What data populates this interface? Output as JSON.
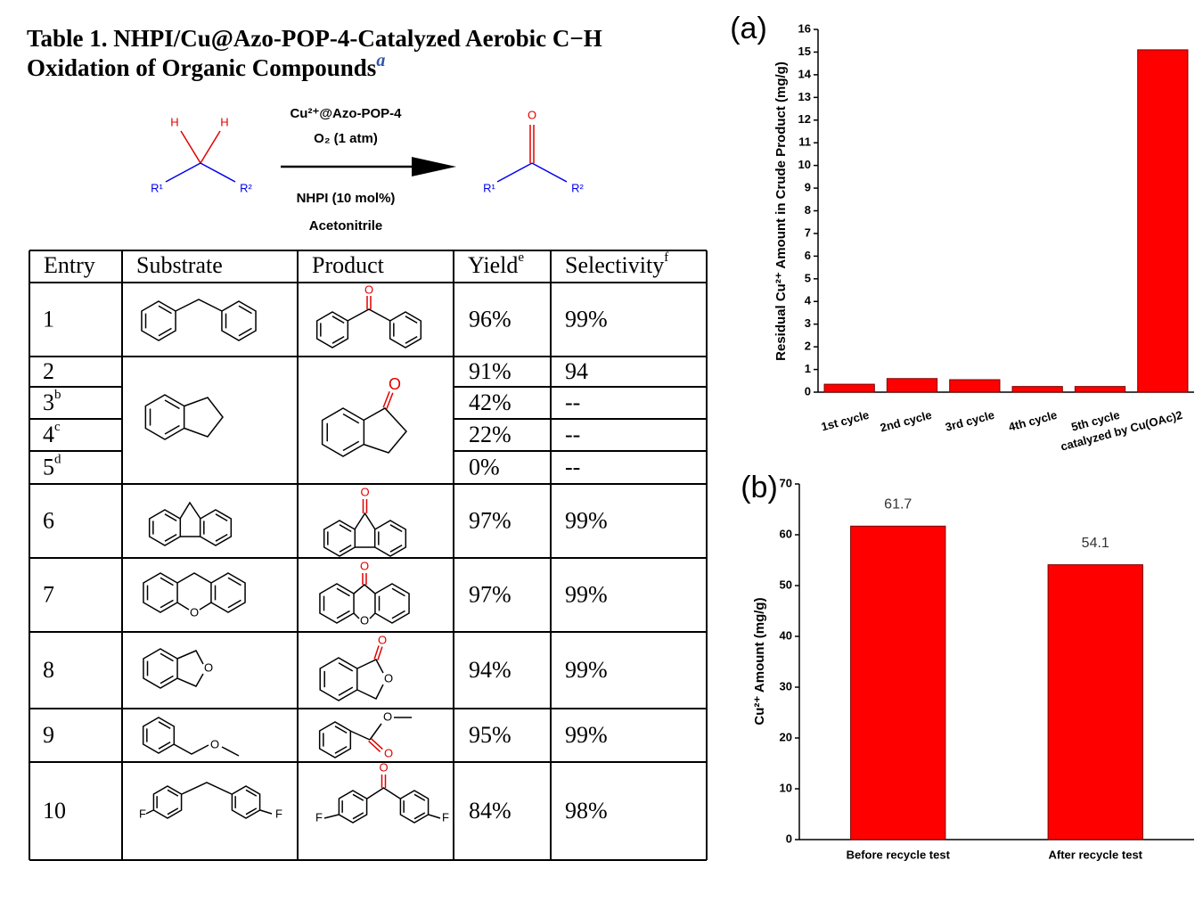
{
  "table": {
    "title_lines": [
      "Table 1. NHPI/Cu@Azo-POP-4-Catalyzed Aerobic C−H",
      "Oxidation of Organic Compounds"
    ],
    "title_note": "a",
    "scheme": {
      "reactant_atoms": [
        "H",
        "H",
        "R¹",
        "R²"
      ],
      "conditions_above": [
        "Cu²⁺@Azo-POP-4",
        "O₂ (1 atm)"
      ],
      "conditions_below": [
        "NHPI (10 mol%)",
        "Acetonitrile"
      ],
      "product_atoms": [
        "O",
        "R¹",
        "R²"
      ]
    },
    "header": [
      {
        "text": "Entry"
      },
      {
        "text": "Substrate"
      },
      {
        "text": "Product"
      },
      {
        "text": "Yield",
        "note": "e"
      },
      {
        "text": "Selectivity",
        "note": "f"
      }
    ],
    "rows": [
      {
        "entry": "1",
        "yield": "96%",
        "selectivity": "99%",
        "product_atoms": [
          "O"
        ]
      },
      {
        "entry": "2",
        "yield": "91%",
        "selectivity": "94",
        "product_atoms": [
          "O"
        ]
      },
      {
        "entry": "3",
        "entry_note": "b",
        "yield": "42%",
        "selectivity": "--"
      },
      {
        "entry": "4",
        "entry_note": "c",
        "yield": "22%",
        "selectivity": "--"
      },
      {
        "entry": "5",
        "entry_note": "d",
        "yield": "0%",
        "selectivity": "--"
      },
      {
        "entry": "6",
        "yield": "97%",
        "selectivity": "99%",
        "product_atoms": [
          "O"
        ]
      },
      {
        "entry": "7",
        "yield": "97%",
        "selectivity": "99%",
        "substrate_atoms": [
          "O"
        ],
        "product_atoms": [
          "O",
          "O"
        ]
      },
      {
        "entry": "8",
        "yield": "94%",
        "selectivity": "99%",
        "substrate_atoms": [
          "O"
        ],
        "product_atoms": [
          "O",
          "O"
        ]
      },
      {
        "entry": "9",
        "yield": "95%",
        "selectivity": "99%",
        "substrate_atoms": [
          "O"
        ],
        "product_atoms": [
          "O",
          "O"
        ]
      },
      {
        "entry": "10",
        "yield": "84%",
        "selectivity": "98%",
        "substrate_atoms": [
          "F",
          "F"
        ],
        "product_atoms": [
          "O",
          "F",
          "F"
        ]
      }
    ]
  },
  "chart_data": [
    {
      "type": "bar",
      "panel_label": "(a)",
      "y_label": "Residual Cu²⁺ Amount in Crude Product (mg/g)",
      "categories": [
        "1st cycle",
        "2nd cycle",
        "3rd cycle",
        "4th cycle",
        "5th cycle",
        "catalyzed by Cu(OAc)2"
      ],
      "values": [
        0.35,
        0.6,
        0.55,
        0.25,
        0.25,
        15.1
      ],
      "color": "#ff0000",
      "ylim": [
        0,
        16
      ],
      "yticks": [
        0,
        1,
        2,
        3,
        4,
        5,
        6,
        7,
        8,
        9,
        10,
        11,
        12,
        13,
        14,
        15,
        16
      ]
    },
    {
      "type": "bar",
      "panel_label": "(b)",
      "y_label": "Cu²⁺ Amount (mg/g)",
      "categories": [
        "Before recycle test",
        "After recycle test"
      ],
      "values": [
        61.7,
        54.1
      ],
      "color": "#ff0000",
      "value_labels_shown": true,
      "ylim": [
        0,
        70
      ],
      "yticks": [
        0,
        10,
        20,
        30,
        40,
        50,
        60,
        70
      ]
    }
  ]
}
